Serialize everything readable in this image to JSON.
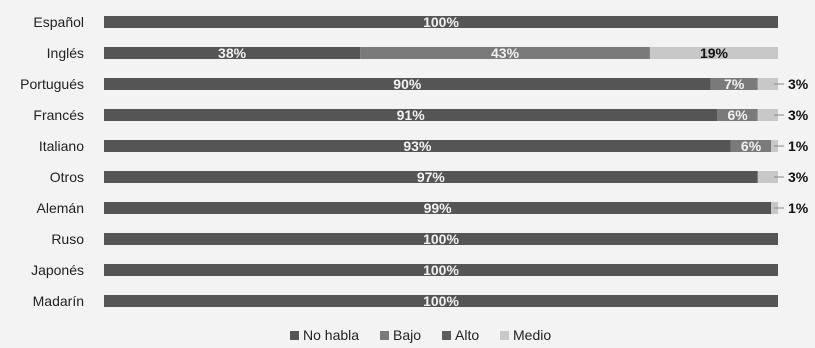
{
  "chart_data": {
    "type": "bar",
    "orientation": "horizontal",
    "stacked": true,
    "percent": true,
    "categories": [
      "Español",
      "Inglés",
      "Portugués",
      "Francés",
      "Italiano",
      "Otros",
      "Alemán",
      "Ruso",
      "Japonés",
      "Madarín"
    ],
    "series": [
      {
        "name": "No habla",
        "color": "#555555",
        "values": [
          100,
          38,
          90,
          91,
          93,
          97,
          99,
          100,
          100,
          100
        ]
      },
      {
        "name": "Bajo",
        "color": "#7a7a7a",
        "values": [
          0,
          43,
          7,
          6,
          6,
          0,
          0,
          0,
          0,
          0
        ]
      },
      {
        "name": "Alto",
        "color": "#5e5e5e",
        "values": [
          0,
          0,
          0,
          0,
          0,
          0,
          0,
          0,
          0,
          0
        ]
      },
      {
        "name": "Medio",
        "color": "#c8c8c8",
        "values": [
          0,
          19,
          3,
          3,
          1,
          3,
          1,
          0,
          0,
          0
        ]
      }
    ],
    "data_labels": [
      [
        {
          "text": "100%",
          "pos": "in"
        }
      ],
      [
        {
          "text": "38%",
          "pos": "in"
        },
        {
          "text": "43%",
          "pos": "in"
        },
        {
          "text": "19%",
          "pos": "in-dark"
        }
      ],
      [
        {
          "text": "90%",
          "pos": "in"
        },
        {
          "text": "7%",
          "pos": "in"
        },
        {
          "text": "3%",
          "pos": "out"
        }
      ],
      [
        {
          "text": "91%",
          "pos": "in"
        },
        {
          "text": "6%",
          "pos": "in"
        },
        {
          "text": "3%",
          "pos": "out"
        }
      ],
      [
        {
          "text": "93%",
          "pos": "in"
        },
        {
          "text": "6%",
          "pos": "in"
        },
        {
          "text": "1%",
          "pos": "out"
        }
      ],
      [
        {
          "text": "97%",
          "pos": "in"
        },
        {
          "text": "3%",
          "pos": "out"
        }
      ],
      [
        {
          "text": "99%",
          "pos": "in"
        },
        {
          "text": "1%",
          "pos": "out"
        }
      ],
      [
        {
          "text": "100%",
          "pos": "in"
        }
      ],
      [
        {
          "text": "100%",
          "pos": "in"
        }
      ],
      [
        {
          "text": "100%",
          "pos": "in"
        }
      ]
    ],
    "legend_position": "bottom",
    "legend": [
      "No habla",
      "Bajo",
      "Alto",
      "Medio"
    ],
    "grid": false
  }
}
